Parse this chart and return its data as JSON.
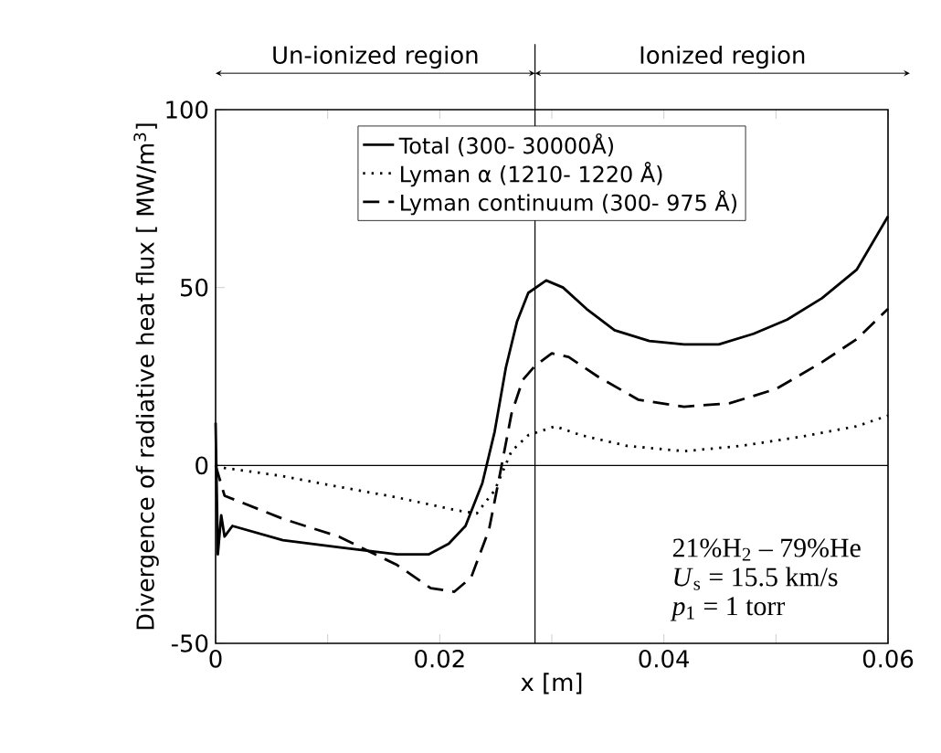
{
  "chart_data": {
    "type": "line",
    "xlabel": "x [m]",
    "ylabel": "Divergence of radiative heat flux [ MW/m$^{3}$]",
    "xlim": [
      0,
      0.06
    ],
    "xticks": [
      0,
      0.02,
      0.04,
      0.06
    ],
    "ylim": [
      -50,
      100
    ],
    "yticks": [
      -50,
      0,
      50,
      100
    ],
    "legend": "top",
    "grid": false,
    "series": [
      {
        "name": "Total (300- 30000Å)",
        "color": "#000000",
        "line_style": "solid",
        "x": [
          0,
          0.0002,
          0.0005,
          0.0008,
          0.0015,
          0.006,
          0.011,
          0.0162,
          0.019,
          0.0208,
          0.0223,
          0.0238,
          0.0249,
          0.0259,
          0.0269,
          0.0279,
          0.0295,
          0.031,
          0.0331,
          0.0356,
          0.0387,
          0.0418,
          0.0449,
          0.048,
          0.051,
          0.0541,
          0.0572,
          0.06
        ],
        "values": [
          12,
          -25,
          -14,
          -20,
          -17,
          -21,
          -23,
          -25,
          -25,
          -22,
          -17,
          -5,
          9.5,
          27.5,
          40.5,
          48.5,
          52,
          50,
          44,
          38,
          35,
          34,
          34,
          37,
          41,
          47,
          55,
          70
        ]
      },
      {
        "name": "Lyman α (1210- 1220 Å)",
        "color": "#000000",
        "line_style": "dotted",
        "x": [
          0,
          0.0008,
          0.006,
          0.011,
          0.0162,
          0.0213,
          0.0233,
          0.0249,
          0.0264,
          0.0279,
          0.0303,
          0.0326,
          0.0367,
          0.0418,
          0.0469,
          0.0521,
          0.0572,
          0.06
        ],
        "values": [
          0,
          -0.7,
          -3,
          -6,
          -9,
          -12.5,
          -13.5,
          -7,
          4,
          8.5,
          11,
          8.5,
          5.5,
          4,
          5.5,
          8,
          11,
          14
        ]
      },
      {
        "name": "Lyman continuum (300- 975 Å)",
        "color": "#000000",
        "line_style": "dashed",
        "x": [
          0,
          0.0008,
          0.006,
          0.011,
          0.0162,
          0.0192,
          0.0213,
          0.0228,
          0.0244,
          0.0254,
          0.0264,
          0.0274,
          0.0285,
          0.03,
          0.0315,
          0.0341,
          0.0377,
          0.0418,
          0.0459,
          0.05,
          0.0541,
          0.0572,
          0.06
        ],
        "values": [
          0,
          -8.5,
          -15,
          -20,
          -28,
          -34.5,
          -35.5,
          -31.5,
          -18,
          -2,
          14.5,
          24,
          28,
          31.5,
          30.5,
          25,
          18.5,
          16.5,
          17.5,
          21.5,
          29,
          35.5,
          44
        ]
      }
    ],
    "ref_lines": [
      {
        "axis": "x",
        "value": 0.0285
      },
      {
        "axis": "y",
        "value": 0
      }
    ],
    "annotations": [
      "Un-ionized region",
      "Ionized region",
      "21%H$_{2}$ – 79%He",
      "*U*$_{s}$ = 15.5 km/s",
      "*p*$_{1}$ = 1 torr"
    ]
  }
}
